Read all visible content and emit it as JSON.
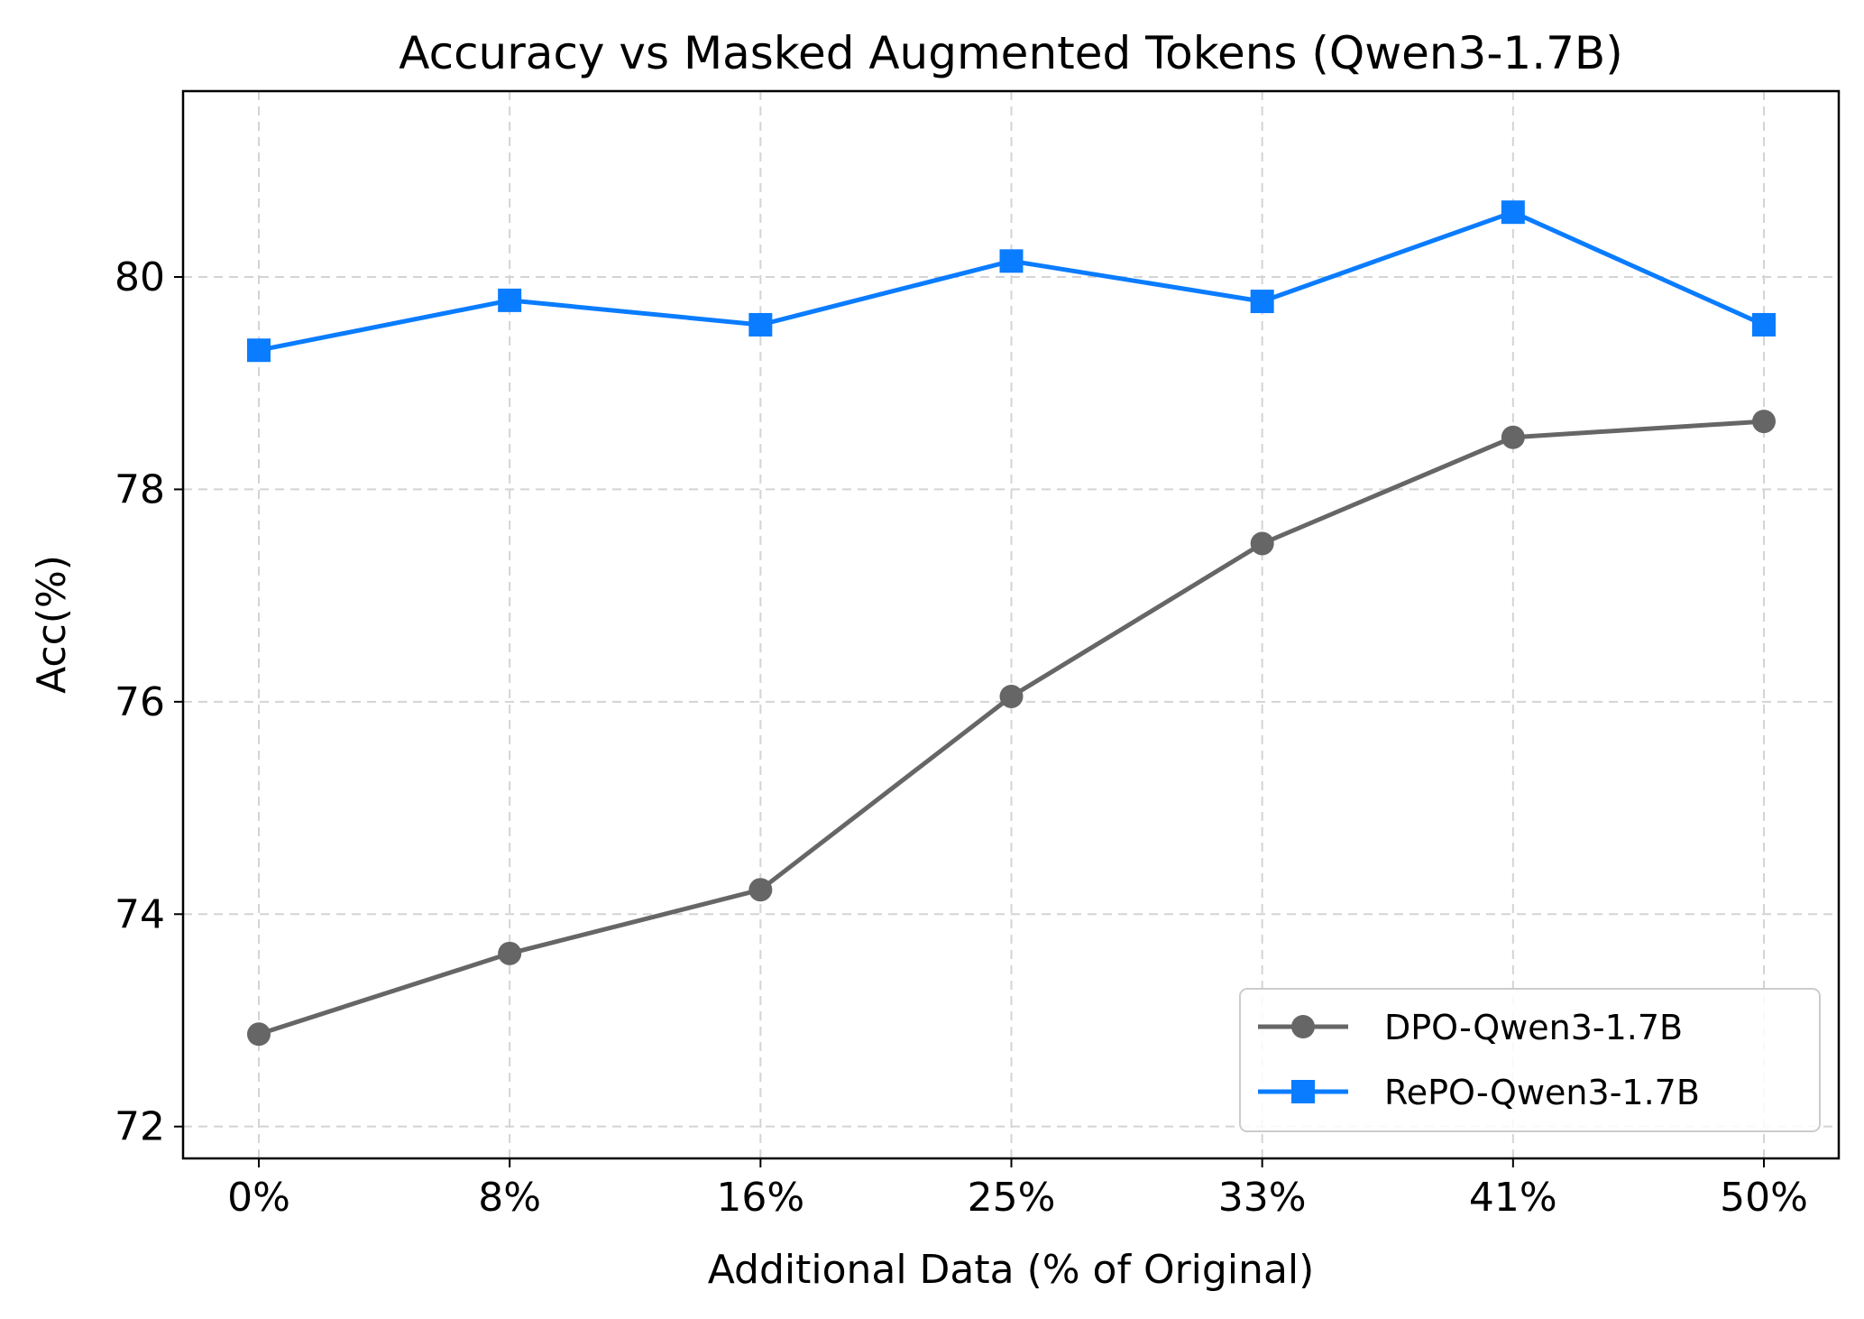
{
  "chart_data": {
    "type": "line",
    "title": "Accuracy vs Masked Augmented Tokens (Qwen3-1.7B)",
    "xlabel": "Additional Data (% of Original)",
    "ylabel": "Acc(%)",
    "categories": [
      "0%",
      "8%",
      "16%",
      "25%",
      "33%",
      "41%",
      "50%"
    ],
    "ylim": [
      71.7,
      81.75
    ],
    "yticks": [
      72,
      74,
      76,
      78,
      80
    ],
    "grid": true,
    "legend_position": "lower-right",
    "series": [
      {
        "name": "DPO-Qwen3-1.7B",
        "color": "#666666",
        "marker": "circle",
        "values": [
          72.87,
          73.63,
          74.23,
          76.05,
          77.49,
          78.49,
          78.64
        ]
      },
      {
        "name": "RePO-Qwen3-1.7B",
        "color": "#0a7cff",
        "marker": "square",
        "values": [
          79.31,
          79.78,
          79.55,
          80.15,
          79.77,
          80.61,
          79.55
        ]
      }
    ]
  }
}
